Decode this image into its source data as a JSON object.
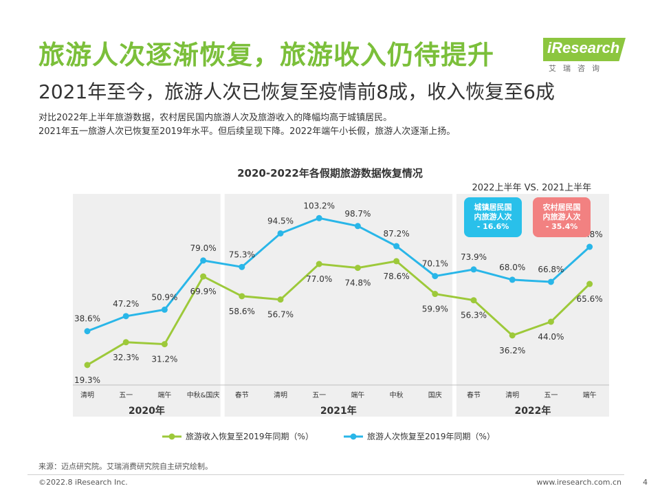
{
  "header": {
    "title": "旅游人次逐渐恢复，旅游收入仍待提升",
    "subtitle": "2021年至今，旅游人次已恢复至疫情前8成，收入恢复至6成",
    "desc_line1": "对比2022年上半年旅游数据，农村居民国内旅游人次及旅游收入的降幅均高于城镇居民。",
    "desc_line2": "2021年五一旅游人次已恢复至2019年水平。但后续呈现下降。2022年端午小长假，旅游人次逐渐上扬。"
  },
  "logo": {
    "text": "iResearch",
    "sub": "艾瑞咨询"
  },
  "chart_data": {
    "type": "line",
    "title": "2020-2022年各假期旅游数据恢复情况",
    "categories": [
      "清明",
      "五一",
      "端午",
      "中秋&国庆",
      "春节",
      "清明",
      "五一",
      "端午",
      "中秋",
      "国庆",
      "春节",
      "清明",
      "五一",
      "端午"
    ],
    "groups": [
      {
        "label": "2020年",
        "start": 0,
        "end": 3
      },
      {
        "label": "2021年",
        "start": 4,
        "end": 9
      },
      {
        "label": "2022年",
        "start": 10,
        "end": 13
      }
    ],
    "series": [
      {
        "name": "旅游收入恢复至2019年同期（%）",
        "color": "#9dc93a",
        "values": [
          19.3,
          32.3,
          31.2,
          69.9,
          58.6,
          56.7,
          77.0,
          74.8,
          78.6,
          59.9,
          56.3,
          36.2,
          44.0,
          65.6
        ],
        "labels": [
          "19.3%",
          "32.3%",
          "31.2%",
          "69.9%",
          "58.6%",
          "56.7%",
          "77.0%",
          "74.8%",
          "78.6%",
          "59.9%",
          "56.3%",
          "36.2%",
          "44.0%",
          "65.6%"
        ]
      },
      {
        "name": "旅游人次恢复至2019年同期（%）",
        "color": "#29b6e8",
        "values": [
          38.6,
          47.2,
          50.9,
          79.0,
          75.3,
          94.5,
          103.2,
          98.7,
          87.2,
          70.1,
          73.9,
          68.0,
          66.8,
          86.8
        ],
        "labels": [
          "38.6%",
          "47.2%",
          "50.9%",
          "79.0%",
          "75.3%",
          "94.5%",
          "103.2%",
          "98.7%",
          "87.2%",
          "70.1%",
          "73.9%",
          "68.0%",
          "66.8%",
          "86.8%"
        ]
      }
    ],
    "annotation": {
      "title": "2022上半年 VS. 2021上半年",
      "boxes": [
        {
          "lines": [
            "城镇居民国",
            "内旅游人次",
            "- 16.6%"
          ],
          "color": "#29c0ea"
        },
        {
          "lines": [
            "农村居民国",
            "内旅游人次",
            "- 35.4%"
          ],
          "color": "#f28181"
        }
      ]
    },
    "ylim": [
      0,
      110
    ],
    "grid": false
  },
  "footer": {
    "source": "来源：迈点研究院。艾瑞消费研究院自主研究绘制。",
    "copyright": "©2022.8 iResearch Inc.",
    "site": "www.iresearch.com.cn",
    "page": "4"
  }
}
